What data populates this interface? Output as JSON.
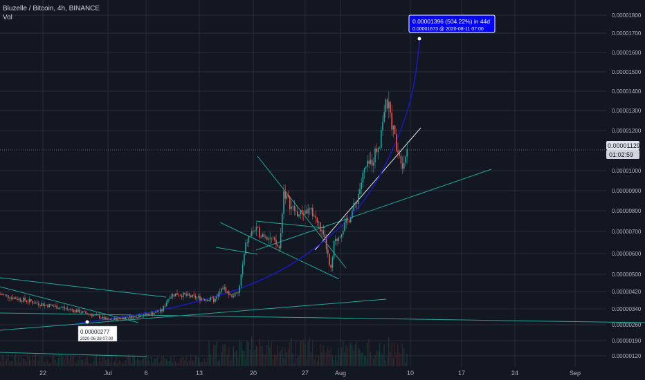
{
  "header": {
    "symbol_line": "Bluzelle / Bitcoin, 4h, BINANCE",
    "volume_label": "Vol"
  },
  "colors": {
    "background": "#131722",
    "grid": "#2a2e39",
    "up": "#26a69a",
    "down": "#ef5350",
    "trendline": "#1fa89a",
    "curve": "#1a1ab8",
    "callout": "#0000ff",
    "price_tag": "#e0e3eb"
  },
  "chart_data": {
    "type": "candlestick",
    "symbol": "Bluzelle / Bitcoin",
    "timeframe": "4h",
    "exchange": "BINANCE",
    "y_scale": "log",
    "ylim": [
      1.1e-06,
      2e-06
    ],
    "y_ticks": [
      "0.00001800",
      "0.00001700",
      "0.00001600",
      "0.00001500",
      "0.00001400",
      "0.00001300",
      "0.00001200",
      "0.00001000",
      "0.00000900",
      "0.00000800",
      "0.00000700",
      "0.00000600",
      "0.00000500",
      "0.00000420",
      "0.00000340",
      "0.00000260",
      "0.00000190",
      "0.00000120"
    ],
    "x_ticks": [
      "22",
      "Jul",
      "6",
      "13",
      "20",
      "27",
      "Aug",
      "10",
      "17",
      "24",
      "Sep"
    ],
    "last_price": "0.00001129",
    "countdown": "01:02:59",
    "callout_top": {
      "line1": "0.00001396 (504.22%) in 44d",
      "line2": "0.00001673 @ 2020-08-11  07:00"
    },
    "callout_low": {
      "price": "0.00000277",
      "date": "2020-06-28  07:00"
    },
    "price_path": [
      [
        16,
        4.25e-06
      ],
      [
        18,
        4e-06
      ],
      [
        20,
        3.8e-06
      ],
      [
        22,
        3.6e-06
      ],
      [
        24,
        3.45e-06
      ],
      [
        26,
        3.25e-06
      ],
      [
        28,
        3e-06
      ],
      [
        29,
        2.82e-06
      ],
      [
        30,
        2.9e-06
      ],
      [
        32,
        3e-06
      ],
      [
        34,
        3.1e-06
      ],
      [
        36,
        3.3e-06
      ],
      [
        37,
        4e-06
      ],
      [
        38,
        4.1e-06
      ],
      [
        40,
        3.95e-06
      ],
      [
        41,
        3.9e-06
      ],
      [
        43,
        3.8e-06
      ],
      [
        44,
        4.4e-06
      ],
      [
        45,
        4e-06
      ],
      [
        46,
        4.1e-06
      ],
      [
        47,
        6.5e-06
      ],
      [
        48,
        7.1e-06
      ],
      [
        49,
        6.9e-06
      ],
      [
        50,
        6.8e-06
      ],
      [
        51,
        6.4e-06
      ],
      [
        51.5,
        6.2e-06
      ],
      [
        52,
        9e-06
      ],
      [
        53,
        8.2e-06
      ],
      [
        54,
        7.8e-06
      ],
      [
        55,
        8e-06
      ],
      [
        56,
        7.9e-06
      ],
      [
        57,
        7.2e-06
      ],
      [
        58,
        6.2e-06
      ],
      [
        58.5,
        5e-06
      ],
      [
        59,
        6.4e-06
      ],
      [
        60,
        7e-06
      ],
      [
        61,
        7.6e-06
      ],
      [
        62,
        8.5e-06
      ],
      [
        63,
        1e-05
      ],
      [
        64,
        1.05e-05
      ],
      [
        65,
        1.15e-05
      ],
      [
        65.5,
        1.3e-05
      ],
      [
        66,
        1.34e-05
      ],
      [
        67,
        1.15e-05
      ],
      [
        68,
        1.03e-05
      ],
      [
        68.6,
        1.129e-05
      ]
    ]
  }
}
